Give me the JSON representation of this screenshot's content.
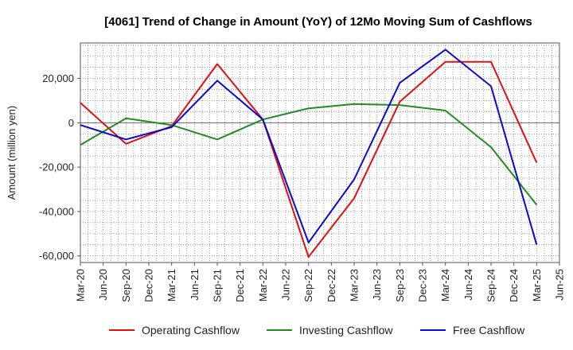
{
  "chart_data": {
    "type": "line",
    "title": "[4061]  Trend of Change in Amount (YoY) of 12Mo Moving Sum of Cashflows",
    "xlabel": "",
    "ylabel": "Amount (million yen)",
    "ylim": [
      -63000,
      36000
    ],
    "yticks": [
      20000,
      0,
      -20000,
      -40000,
      -60000
    ],
    "ytick_labels": [
      "20,000",
      "0",
      "-20,000",
      "-40,000",
      "-60,000"
    ],
    "categories": [
      "Mar-20",
      "Jun-20",
      "Sep-20",
      "Dec-20",
      "Mar-21",
      "Jun-21",
      "Sep-21",
      "Dec-21",
      "Mar-22",
      "Jun-22",
      "Sep-22",
      "Dec-22",
      "Mar-23",
      "Jun-23",
      "Sep-23",
      "Dec-23",
      "Mar-24",
      "Jun-24",
      "Sep-24",
      "Dec-24",
      "Mar-25",
      "Jun-25"
    ],
    "grid": true,
    "legend_position": "bottom",
    "series": [
      {
        "name": "Operating Cashflow",
        "color": "#e01010",
        "x": [
          "Mar-20",
          "Sep-20",
          "Mar-21",
          "Sep-21",
          "Mar-22",
          "Sep-22",
          "Mar-23",
          "Sep-23",
          "Mar-24",
          "Sep-24",
          "Mar-25"
        ],
        "values": [
          9000,
          -9500,
          -1500,
          26500,
          1500,
          -60500,
          -34000,
          9500,
          27500,
          27500,
          -18000
        ]
      },
      {
        "name": "Investing Cashflow",
        "color": "#228b22",
        "x": [
          "Mar-20",
          "Sep-20",
          "Mar-21",
          "Sep-21",
          "Mar-22",
          "Sep-22",
          "Mar-23",
          "Sep-23",
          "Mar-24",
          "Sep-24",
          "Mar-25"
        ],
        "values": [
          -10000,
          2000,
          -1000,
          -7500,
          1500,
          6500,
          8500,
          8000,
          5500,
          -11000,
          -37000
        ]
      },
      {
        "name": "Free Cashflow",
        "color": "#0a0acc",
        "x": [
          "Mar-20",
          "Sep-20",
          "Mar-21",
          "Sep-21",
          "Mar-22",
          "Sep-22",
          "Mar-23",
          "Sep-23",
          "Mar-24",
          "Sep-24",
          "Mar-25"
        ],
        "values": [
          -1000,
          -7500,
          -2000,
          19000,
          1500,
          -54000,
          -25500,
          18000,
          33000,
          16500,
          -55000
        ]
      }
    ]
  }
}
